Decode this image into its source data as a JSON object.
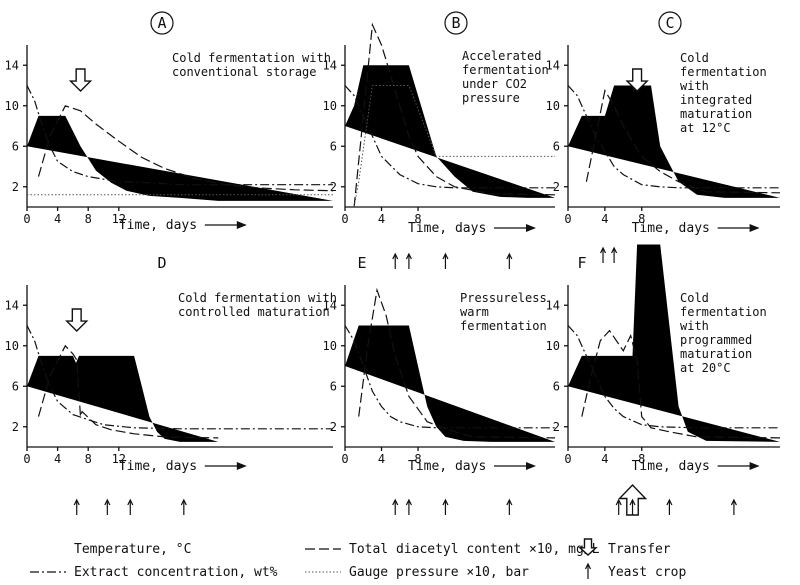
{
  "chart_data": [
    {
      "id": "A",
      "type": "line",
      "letter_style": "circled",
      "annotation": "Cold fermentation with\nconventional storage",
      "xlabel": "Time, days",
      "x_ticks": [
        0,
        4,
        8,
        12
      ],
      "y_ticks": [
        2,
        6,
        10,
        14
      ],
      "xlim": [
        0,
        40
      ],
      "ylim": [
        0,
        16
      ],
      "series": [
        {
          "role": "temperature",
          "x": [
            0,
            1.5,
            5,
            7,
            9,
            11,
            13,
            16,
            20,
            25,
            40
          ],
          "y": [
            6,
            9,
            9,
            6,
            3.6,
            2.4,
            1.6,
            1.1,
            0.9,
            0.6,
            0.6
          ]
        },
        {
          "role": "extract",
          "x": [
            0,
            1,
            2,
            3,
            4,
            6,
            8,
            12,
            16,
            20,
            40
          ],
          "y": [
            12,
            10.5,
            8,
            6,
            4.5,
            3.5,
            3,
            2.5,
            2.4,
            2.2,
            2.2
          ]
        },
        {
          "role": "diacetyl",
          "x": [
            1.5,
            3,
            5,
            7,
            9,
            12,
            15,
            18,
            22,
            26,
            30,
            35,
            40
          ],
          "y": [
            3,
            7,
            10,
            9.5,
            8.2,
            6.5,
            4.9,
            3.8,
            2.8,
            2.2,
            1.9,
            1.7,
            1.6
          ]
        },
        {
          "role": "gauge",
          "x": [
            0,
            10,
            20,
            30,
            40
          ],
          "y": [
            1.2,
            1.2,
            1.2,
            1.2,
            1.2
          ]
        }
      ],
      "transfer_arrows": [
        7
      ],
      "yeast_crops": []
    },
    {
      "id": "B",
      "type": "line",
      "letter_style": "circled",
      "annotation": "Accelerated\nfermentation\nunder CO2\npressure",
      "xlabel": "Time, days",
      "x_ticks": [
        0,
        4,
        8
      ],
      "y_ticks": [
        2,
        6,
        10,
        14
      ],
      "xlim": [
        0,
        23
      ],
      "ylim": [
        0,
        16
      ],
      "series": [
        {
          "role": "temperature",
          "x": [
            0,
            1,
            2,
            7,
            10,
            12,
            14,
            17,
            20,
            23
          ],
          "y": [
            8,
            10,
            14,
            14,
            5,
            3,
            1.5,
            1,
            0.9,
            0.9
          ]
        },
        {
          "role": "extract",
          "x": [
            0,
            1,
            2,
            3,
            4,
            6,
            8,
            10,
            12,
            16,
            23
          ],
          "y": [
            12,
            11,
            9,
            7,
            5,
            3.2,
            2.3,
            2,
            1.9,
            1.9,
            1.9
          ]
        },
        {
          "role": "diacetyl",
          "x": [
            1,
            2,
            3,
            4,
            5,
            6,
            7,
            8,
            10,
            12,
            16,
            23
          ],
          "y": [
            0,
            9,
            18,
            16,
            13,
            10,
            7,
            5,
            3,
            2,
            1.3,
            1.2
          ]
        },
        {
          "role": "gauge",
          "x": [
            1,
            1.5,
            3,
            7,
            10,
            23
          ],
          "y": [
            0,
            2.5,
            12,
            12,
            5,
            5
          ]
        }
      ],
      "transfer_arrows": [],
      "yeast_crops": []
    },
    {
      "id": "C",
      "type": "line",
      "letter_style": "circled",
      "annotation": "Cold\nfermentation\nwith\nintegrated\nmaturation\nat 12°C",
      "xlabel": "Time, days",
      "x_ticks": [
        0,
        4,
        8
      ],
      "y_ticks": [
        2,
        6,
        10,
        14
      ],
      "xlim": [
        0,
        23
      ],
      "ylim": [
        0,
        16
      ],
      "series": [
        {
          "role": "temperature",
          "x": [
            0,
            1.5,
            4,
            5,
            9,
            10,
            12,
            14,
            17,
            23
          ],
          "y": [
            6,
            9,
            9,
            12,
            12,
            6,
            2.5,
            1.2,
            0.9,
            0.9
          ]
        },
        {
          "role": "extract",
          "x": [
            0,
            1,
            2,
            3,
            4,
            5,
            6,
            8,
            10,
            12,
            23
          ],
          "y": [
            12,
            11,
            9,
            7,
            5.5,
            4,
            3.2,
            2.2,
            2,
            1.9,
            1.9
          ]
        },
        {
          "role": "diacetyl",
          "x": [
            2,
            3,
            4,
            5,
            6,
            8,
            10,
            12,
            15,
            23
          ],
          "y": [
            2.5,
            7,
            11.5,
            10,
            8,
            5,
            3.5,
            2.5,
            1.5,
            1.4
          ]
        }
      ],
      "transfer_arrows": [
        7.5
      ],
      "yeast_crops": []
    },
    {
      "id": "D",
      "type": "line",
      "letter_style": "plain",
      "annotation": "Cold fermentation with\ncontrolled maturation",
      "xlabel": "Time, days",
      "x_ticks": [
        0,
        4,
        8,
        12
      ],
      "y_ticks": [
        2,
        6,
        10,
        14
      ],
      "xlim": [
        0,
        40
      ],
      "ylim": [
        0,
        16
      ],
      "series": [
        {
          "role": "temperature",
          "x": [
            0,
            1.5,
            6,
            6.4,
            6.8,
            14,
            15,
            16,
            17,
            18,
            20,
            25
          ],
          "y": [
            6,
            9,
            9,
            8.3,
            9,
            9,
            6,
            3,
            1.5,
            0.8,
            0.5,
            0.5
          ]
        },
        {
          "role": "extract",
          "x": [
            0,
            1,
            2,
            3,
            4,
            6,
            8,
            10,
            14,
            20,
            40
          ],
          "y": [
            12,
            10.5,
            8,
            6,
            4.5,
            3.2,
            2.7,
            2.2,
            1.9,
            1.8,
            1.8
          ]
        },
        {
          "role": "diacetyl",
          "x": [
            1.5,
            3,
            5,
            6,
            6.5,
            7,
            7.2,
            9,
            11,
            14,
            18,
            25
          ],
          "y": [
            3,
            7,
            10,
            9.2,
            8.6,
            3,
            3.5,
            2.2,
            1.7,
            1.3,
            1,
            0.9
          ]
        }
      ],
      "transfer_arrows": [
        6.5
      ],
      "yeast_crops": [
        6.5,
        10.5,
        13.5,
        20.5
      ]
    },
    {
      "id": "E",
      "type": "line",
      "letter_style": "plain",
      "annotation": "Pressureless\nwarm\nfermentation",
      "xlabel": "Time, days",
      "x_ticks": [
        0,
        4,
        8
      ],
      "y_ticks": [
        2,
        6,
        10,
        14
      ],
      "xlim": [
        0,
        23
      ],
      "ylim": [
        0,
        16
      ],
      "series": [
        {
          "role": "temperature",
          "x": [
            0,
            1.5,
            7,
            8,
            9,
            10,
            11,
            13,
            16,
            23
          ],
          "y": [
            8,
            12,
            12,
            8,
            4,
            2,
            1,
            0.6,
            0.5,
            0.5
          ]
        },
        {
          "role": "extract",
          "x": [
            0,
            1,
            2,
            3,
            4,
            5,
            6,
            8,
            10,
            13,
            23
          ],
          "y": [
            12,
            10.5,
            8,
            5.5,
            4,
            3,
            2.5,
            2,
            1.9,
            1.9,
            1.9
          ]
        },
        {
          "role": "diacetyl",
          "x": [
            1.5,
            2.5,
            3.5,
            4.5,
            5.5,
            7,
            9,
            11,
            14,
            23
          ],
          "y": [
            3,
            10,
            15.5,
            13,
            9,
            5,
            2.5,
            1.8,
            1,
            0.9
          ]
        }
      ],
      "transfer_arrows": [],
      "yeast_crops": [
        5.5,
        7,
        11,
        18
      ]
    },
    {
      "id": "F",
      "type": "line",
      "letter_style": "plain",
      "annotation": "Cold\nfermentation\nwith\nprogrammed\nmaturation\nat 20°C",
      "xlabel": "Time, days",
      "x_ticks": [
        0,
        4,
        8
      ],
      "y_ticks": [
        2,
        6,
        10,
        14
      ],
      "xlim": [
        0,
        23
      ],
      "ylim": [
        0,
        16
      ],
      "series": [
        {
          "role": "temperature",
          "x": [
            0,
            1.5,
            7,
            7.5,
            10,
            11,
            12,
            13,
            15,
            23
          ],
          "y": [
            6,
            9,
            9,
            20,
            20,
            12,
            4,
            1.5,
            0.6,
            0.5
          ]
        },
        {
          "role": "extract",
          "x": [
            0,
            1,
            2,
            3,
            4,
            5,
            6,
            8,
            10,
            14,
            23
          ],
          "y": [
            12,
            11,
            9,
            7,
            5,
            3.8,
            3,
            2.2,
            2,
            1.9,
            1.9
          ]
        },
        {
          "role": "diacetyl",
          "x": [
            1.5,
            2.5,
            3.5,
            4.5,
            6,
            6.8,
            7.5,
            8,
            9,
            11,
            14,
            23
          ],
          "y": [
            3,
            7,
            10.5,
            11.5,
            9.5,
            11,
            8.5,
            3,
            1.9,
            1.5,
            1,
            0.9
          ]
        }
      ],
      "transfer_arrows": [
        7
      ],
      "yeast_crops": [
        5.5,
        7,
        11,
        18
      ]
    }
  ],
  "legend": [
    {
      "role": "temperature",
      "label": "Temperature, °C"
    },
    {
      "role": "extract",
      "label": "Extract concentration, wt%"
    },
    {
      "role": "diacetyl",
      "label": "Total diacetyl content ×10, mg/L"
    },
    {
      "role": "gauge",
      "label": "Gauge pressure ×10, bar"
    },
    {
      "role": "transfer",
      "label": "Transfer"
    },
    {
      "role": "yeast-crop",
      "label": "Yeast crop"
    }
  ]
}
